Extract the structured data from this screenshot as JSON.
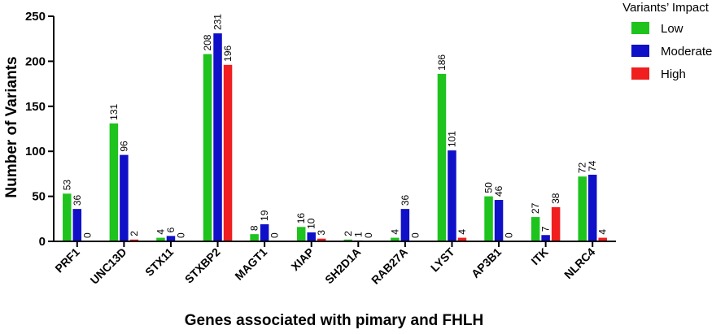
{
  "chart_data": {
    "type": "bar",
    "title": "",
    "xlabel": "Genes associated with pimary and FHLH",
    "ylabel": "Number of Variants",
    "ylim": [
      0,
      250
    ],
    "yticks": [
      0,
      50,
      100,
      150,
      200,
      250
    ],
    "grid": false,
    "legend_title": "Variants’ Impact",
    "legend_position": "top-right",
    "categories": [
      "PRF1",
      "UNC13D",
      "STX11",
      "STXBP2",
      "MAGT1",
      "XIAP",
      "SH2D1A",
      "RAB27A",
      "LYST",
      "AP3B1",
      "ITK",
      "NLRC4"
    ],
    "series": [
      {
        "name": "Low",
        "color": "#1ec31e",
        "values": [
          53,
          131,
          4,
          208,
          8,
          16,
          2,
          4,
          186,
          50,
          27,
          72
        ]
      },
      {
        "name": "Moderate",
        "color": "#1010c8",
        "values": [
          36,
          96,
          6,
          231,
          19,
          10,
          1,
          36,
          101,
          46,
          7,
          74
        ]
      },
      {
        "name": "High",
        "color": "#f01e1e",
        "values": [
          0,
          2,
          0,
          196,
          0,
          3,
          0,
          0,
          4,
          0,
          38,
          4
        ]
      }
    ]
  }
}
